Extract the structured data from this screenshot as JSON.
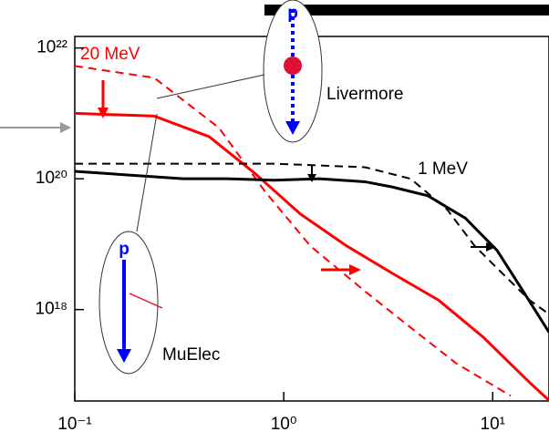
{
  "chart_data": {
    "type": "line",
    "annotations": [
      "20 MeV",
      "1 MeV",
      "Livermore",
      "MuElec",
      "p",
      "p"
    ],
    "xlog": true,
    "ylog": true,
    "xlim": [
      0.1,
      18.6
    ],
    "ylim": [
      4e+16,
      1.5e+22
    ],
    "xticks": [
      {
        "value": 0.1,
        "label": "10⁻¹"
      },
      {
        "value": 1,
        "label": "10⁰"
      },
      {
        "value": 10,
        "label": "10¹"
      }
    ],
    "yticks": [
      {
        "value": 1e+18,
        "label": "10¹⁸"
      },
      {
        "value": 1e+20,
        "label": "10²⁰"
      },
      {
        "value": 1e+22,
        "label": "10²²"
      }
    ],
    "series": [
      {
        "color": "#ff0000",
        "dash": false,
        "x": [
          0.1,
          0.24,
          0.44,
          0.73,
          1.2,
          2,
          3.3,
          5.5,
          9,
          15,
          18.6
        ],
        "values": [
          1e+21,
          9.1e+20,
          4.4e+20,
          1.2e+20,
          2.9e+19,
          9.4e+18,
          3.6e+18,
          1.4e+18,
          3.8e+17,
          7.7e+16,
          4.1e+16
        ]
      },
      {
        "color": "#ff0000",
        "dash": true,
        "x": [
          0.1,
          0.24,
          0.49,
          0.81,
          1.34,
          2.45,
          4.05,
          6.7,
          12.2
        ],
        "values": [
          5.3e+21,
          3.5e+21,
          6e+20,
          6.5e+19,
          9.4e+18,
          1.9e+18,
          5.3e+17,
          1.5e+17,
          4.8e+16
        ]
      },
      {
        "color": "#000000",
        "dash": false,
        "x": [
          0.1,
          0.33,
          0.54,
          0.9,
          1.48,
          2.45,
          3.3,
          4.9,
          7.4,
          10.5,
          14,
          18.6
        ],
        "values": [
          1.3e+20,
          1e+20,
          1e+20,
          9.5e+19,
          1e+20,
          9e+19,
          7.5e+19,
          5.5e+19,
          2.5e+19,
          8e+18,
          1.9e+18,
          4.5e+17
        ]
      },
      {
        "color": "#000000",
        "dash": true,
        "x": [
          0.1,
          0.33,
          0.9,
          2.45,
          4.05,
          6.05,
          8.2,
          11.1,
          15,
          18.6
        ],
        "values": [
          1.7e+20,
          1.7e+20,
          1.7e+20,
          1.5e+20,
          1e+20,
          3.4e+19,
          9.4e+18,
          3.6e+18,
          1.4e+18,
          8.5e+17
        ]
      }
    ]
  }
}
